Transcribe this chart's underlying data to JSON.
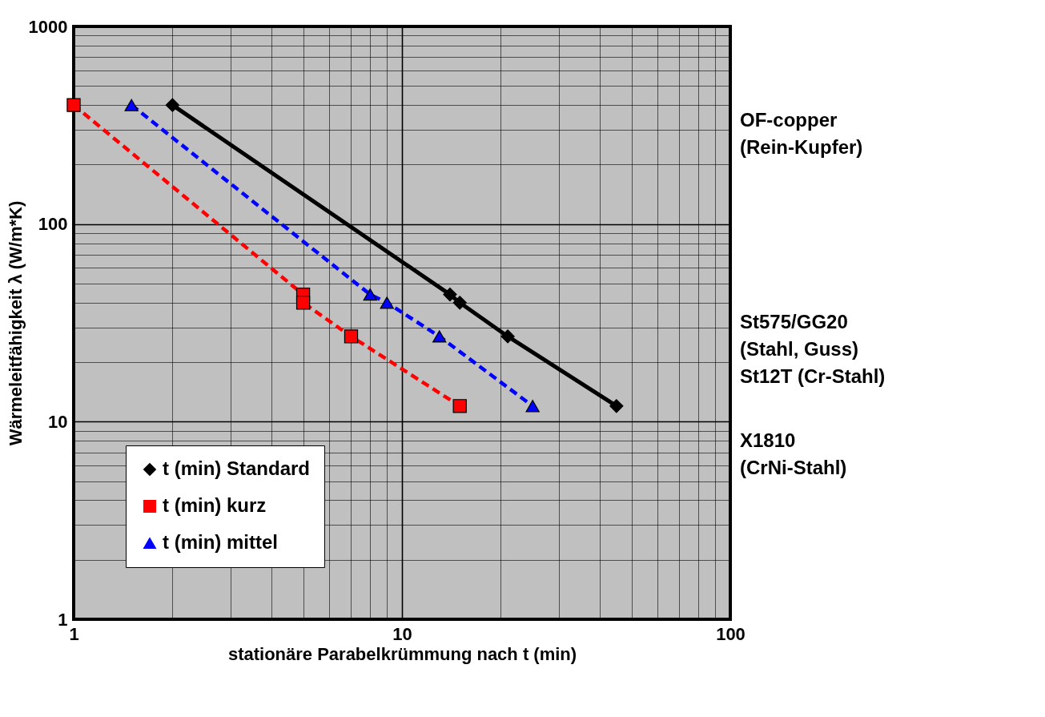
{
  "chart_data": {
    "type": "line",
    "xlabel": "stationäre Parabelkrümmung nach t (min)",
    "ylabel": "Wärmeleitfähigkeit λ (W/m*K)",
    "log": "xy",
    "xlim": [
      1,
      100
    ],
    "ylim": [
      1,
      1000
    ],
    "xticks": [
      1,
      10,
      100
    ],
    "yticks": [
      1,
      10,
      100,
      1000
    ],
    "grid": true,
    "legend": "bottom left",
    "series": [
      {
        "name": "t (min) Standard",
        "color": "#000000",
        "marker": "diamond",
        "line_style": "solid",
        "x": [
          2,
          14,
          15,
          21,
          45
        ],
        "values": [
          400,
          44,
          40,
          27,
          12
        ]
      },
      {
        "name": "t (min) kurz",
        "color": "#ff0000",
        "marker": "square",
        "line_style": "dashed",
        "x": [
          1,
          5,
          5,
          7,
          15
        ],
        "values": [
          400,
          44,
          40,
          27,
          12
        ]
      },
      {
        "name": "t (min) mittel",
        "color": "#0000ff",
        "marker": "triangle",
        "line_style": "dashed",
        "x": [
          1.5,
          8,
          9,
          13,
          25
        ],
        "values": [
          400,
          44,
          40,
          27,
          12
        ]
      }
    ],
    "annotations": [
      "OF-copper\n(Rein-Kupfer)",
      "St575/GG20\n(Stahl, Guss)\nSt12T (Cr-Stahl)",
      "X1810\n(CrNi-Stahl)"
    ]
  }
}
